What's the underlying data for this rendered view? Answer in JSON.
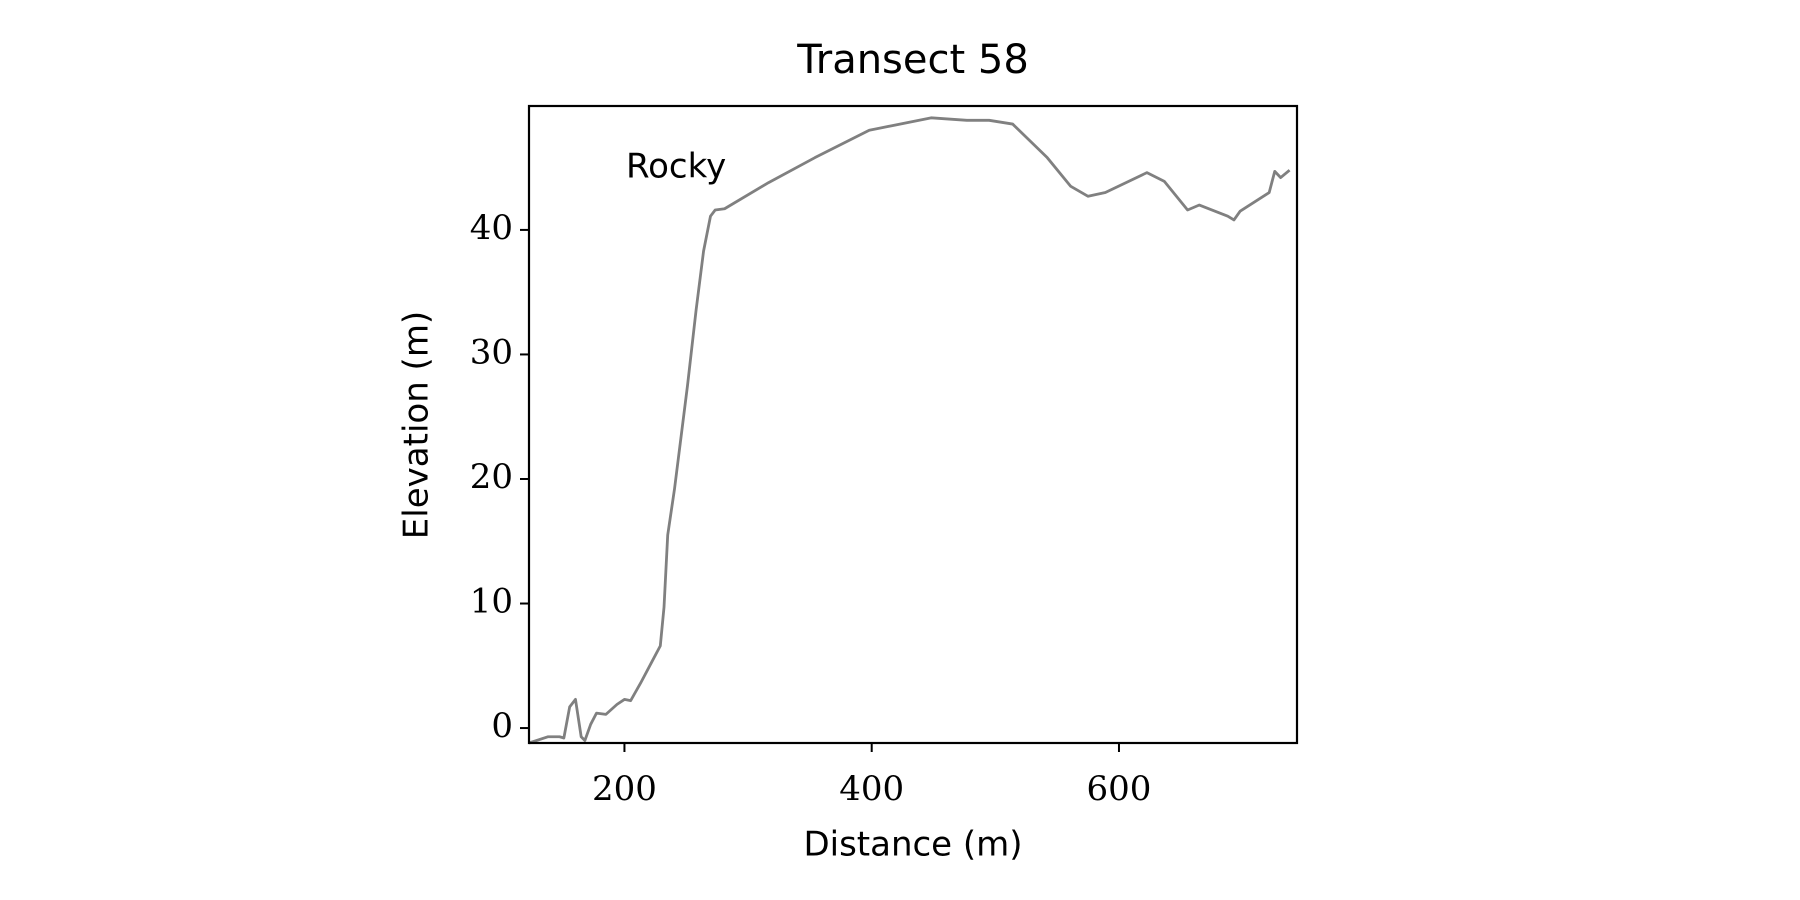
{
  "chart_data": {
    "type": "line",
    "title": "Transect 58",
    "xlabel": "Distance (m)",
    "ylabel": "Elevation (m)",
    "annotation": "Rocky",
    "x": [
      122.8,
      138,
      147.5,
      151,
      155.7,
      160.4,
      165,
      168,
      172.7,
      177.4,
      185,
      194,
      200,
      205,
      213,
      222.6,
      229,
      232,
      235,
      240.5,
      251,
      258,
      264,
      269.6,
      273.4,
      281,
      316.6,
      354,
      398,
      448,
      477,
      495,
      514,
      542,
      561,
      575,
      589,
      622.6,
      636.7,
      655.5,
      665,
      688,
      693,
      698,
      721.5,
      726,
      730.8,
      738
    ],
    "series": [
      {
        "name": "Rocky",
        "color": "#808080",
        "values": [
          -1.2,
          -0.7,
          -0.7,
          -0.8,
          1.7,
          2.3,
          -0.7,
          -1.0,
          0.3,
          1.2,
          1.1,
          1.9,
          2.3,
          2.2,
          3.6,
          5.4,
          6.6,
          9.7,
          15.5,
          19.2,
          27.5,
          33.6,
          38.3,
          41.1,
          41.6,
          41.7,
          43.8,
          45.8,
          48.0,
          49.0,
          48.8,
          48.8,
          48.5,
          45.8,
          43.5,
          42.7,
          43.0,
          44.6,
          43.9,
          41.6,
          42.0,
          41.1,
          40.8,
          41.5,
          43.0,
          44.7,
          44.2,
          44.8
        ]
      }
    ],
    "xlim": [
      122.8,
      744
    ],
    "ylim": [
      -1.2,
      49.95
    ],
    "xticks": [
      200,
      400,
      600
    ],
    "yticks": [
      0,
      10,
      20,
      30,
      40
    ]
  }
}
